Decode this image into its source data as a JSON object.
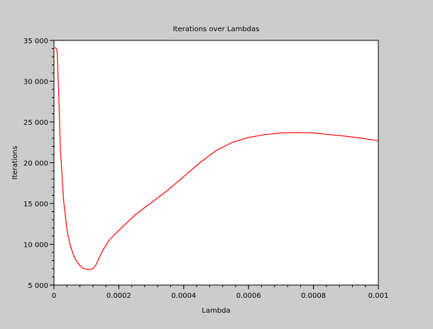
{
  "figure": {
    "background_color": "#cccccc",
    "plot_background_color": "#ffffff"
  },
  "chart_data": {
    "type": "line",
    "title": "Iterations over Lambdas",
    "xlabel": "Lambda",
    "ylabel": "Iterations",
    "xlim": [
      0,
      0.001
    ],
    "ylim": [
      5000,
      35000
    ],
    "x_ticks": [
      0,
      0.0002,
      0.0004,
      0.0006,
      0.0008,
      0.001
    ],
    "x_tick_labels": [
      "0",
      "0.0002",
      "0.0004",
      "0.0006",
      "0.0008",
      "0.001"
    ],
    "y_ticks": [
      5000,
      10000,
      15000,
      20000,
      25000,
      30000,
      35000
    ],
    "y_tick_labels": [
      "5 000",
      "10 000",
      "15 000",
      "20 000",
      "25 000",
      "30 000",
      "35 000"
    ],
    "grid": false,
    "legend": "none",
    "series": [
      {
        "color": "#ff0000",
        "x": [
          5e-06,
          1e-05,
          1.5e-05,
          2e-05,
          3e-05,
          4e-05,
          5e-05,
          6e-05,
          7e-05,
          8e-05,
          9e-05,
          0.0001,
          0.00011,
          0.00012,
          0.00013,
          0.00014,
          0.00015,
          0.00017,
          0.0002,
          0.00025,
          0.0003,
          0.00035,
          0.0004,
          0.00045,
          0.0005,
          0.00055,
          0.0006,
          0.00065,
          0.0007,
          0.00075,
          0.0008,
          0.00085,
          0.0009,
          0.00095,
          0.001
        ],
        "y": [
          34200,
          33600,
          28000,
          21500,
          15300,
          11800,
          9900,
          8700,
          7900,
          7400,
          7050,
          6950,
          6900,
          7000,
          7500,
          8400,
          9200,
          10500,
          11700,
          13600,
          15100,
          16600,
          18300,
          20000,
          21500,
          22500,
          23100,
          23450,
          23650,
          23700,
          23650,
          23450,
          23250,
          23000,
          22700
        ]
      }
    ]
  }
}
